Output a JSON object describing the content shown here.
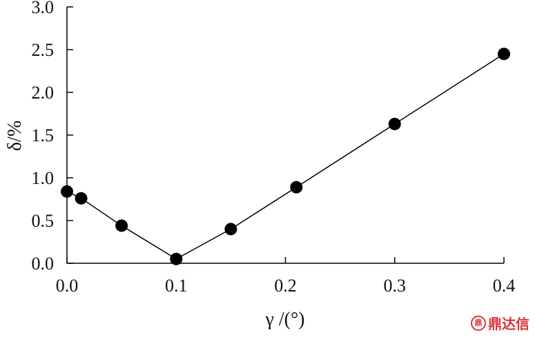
{
  "chart_data": {
    "type": "line",
    "title": "",
    "xlabel": "γ /(°)",
    "ylabel": "δ/%",
    "xlim": [
      0.0,
      0.4
    ],
    "ylim": [
      0.0,
      3.0
    ],
    "x_ticks": [
      "0.0",
      "0.1",
      "0.2",
      "0.3",
      "0.4"
    ],
    "y_ticks": [
      "0.0",
      "0.5",
      "1.0",
      "1.5",
      "2.0",
      "2.5",
      "3.0"
    ],
    "grid": false,
    "series": [
      {
        "x": [
          0.0,
          0.013,
          0.05,
          0.1,
          0.15,
          0.21,
          0.3,
          0.4
        ],
        "y": [
          0.84,
          0.76,
          0.44,
          0.05,
          0.4,
          0.89,
          1.63,
          2.45
        ],
        "color": "#000000",
        "marker": "circle"
      }
    ]
  },
  "watermark": {
    "icon": "dingda-logo-icon",
    "text": "鼎达信"
  }
}
